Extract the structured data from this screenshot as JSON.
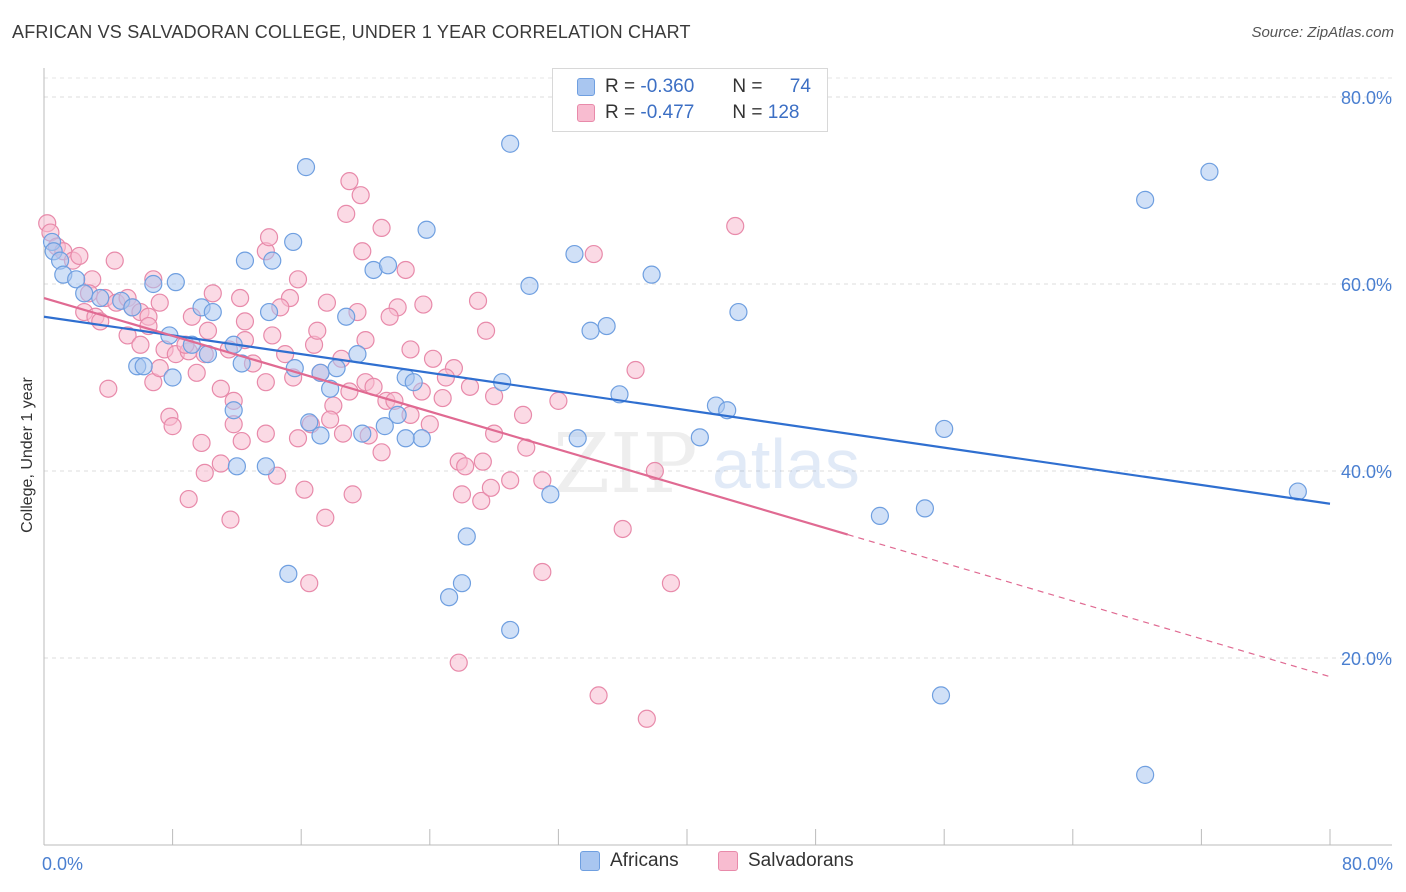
{
  "title": "AFRICAN VS SALVADORAN COLLEGE, UNDER 1 YEAR CORRELATION CHART",
  "source": "Source: ZipAtlas.com",
  "watermark": {
    "zip": "ZIP",
    "atlas": "atlas"
  },
  "legend_top": [
    {
      "r_label": "R =",
      "r_value": "-0.360",
      "n_label": "N =",
      "n_value": "74",
      "color": "#a9c6f0",
      "edge": "#6f9fe0"
    },
    {
      "r_label": "R =",
      "r_value": "-0.477",
      "n_label": "N =",
      "n_value": "128",
      "color": "#f8bcd0",
      "edge": "#e88aaa"
    }
  ],
  "legend_bottom": [
    {
      "label": "Africans",
      "color": "#a9c6f0",
      "edge": "#6f9fe0"
    },
    {
      "label": "Salvadorans",
      "color": "#f8bcd0",
      "edge": "#e88aaa"
    }
  ],
  "chart_data": {
    "type": "scatter",
    "title": "AFRICAN VS SALVADORAN COLLEGE, UNDER 1 YEAR CORRELATION CHART",
    "xlabel": "",
    "ylabel": "College, Under 1 year",
    "xlim": [
      0,
      80
    ],
    "ylim": [
      0,
      82
    ],
    "x_tick_labels": [
      "0.0%",
      "80.0%"
    ],
    "y_ticks": [
      20,
      40,
      60,
      80
    ],
    "y_tick_labels": [
      "20.0%",
      "40.0%",
      "60.0%",
      "80.0%"
    ],
    "grid": true,
    "legend_placement": "top-center",
    "series": [
      {
        "name": "Africans",
        "color": "#6f9fe0",
        "fill": "#a9c6f0",
        "trend": {
          "x": [
            0,
            80
          ],
          "y": [
            56.5,
            36.5
          ],
          "color": "#2f6fd0"
        },
        "points": [
          [
            0.5,
            64.5
          ],
          [
            0.6,
            63.5
          ],
          [
            1.0,
            62.5
          ],
          [
            1.2,
            61.0
          ],
          [
            2.0,
            60.5
          ],
          [
            2.5,
            59.0
          ],
          [
            3.5,
            58.5
          ],
          [
            4.8,
            58.2
          ],
          [
            5.5,
            57.5
          ],
          [
            6.8,
            60.0
          ],
          [
            8.2,
            60.2
          ],
          [
            9.8,
            57.5
          ],
          [
            10.5,
            57.0
          ],
          [
            12.5,
            62.5
          ],
          [
            14.2,
            62.5
          ],
          [
            15.5,
            64.5
          ],
          [
            16.3,
            72.5
          ],
          [
            14.0,
            57.0
          ],
          [
            18.8,
            56.5
          ],
          [
            20.5,
            61.5
          ],
          [
            21.4,
            62.0
          ],
          [
            23.8,
            65.8
          ],
          [
            29.0,
            75.0
          ],
          [
            30.2,
            59.8
          ],
          [
            33.0,
            63.2
          ],
          [
            37.8,
            61.0
          ],
          [
            43.2,
            57.0
          ],
          [
            34.0,
            55.0
          ],
          [
            35.0,
            55.5
          ],
          [
            7.8,
            54.5
          ],
          [
            5.8,
            51.2
          ],
          [
            6.2,
            51.2
          ],
          [
            8.0,
            50.0
          ],
          [
            9.2,
            53.5
          ],
          [
            10.2,
            52.5
          ],
          [
            11.8,
            53.5
          ],
          [
            12.3,
            51.5
          ],
          [
            15.6,
            51.0
          ],
          [
            18.2,
            51.0
          ],
          [
            19.5,
            52.5
          ],
          [
            17.2,
            50.5
          ],
          [
            17.8,
            48.8
          ],
          [
            22.5,
            50.0
          ],
          [
            23.0,
            49.5
          ],
          [
            11.8,
            46.5
          ],
          [
            16.5,
            45.2
          ],
          [
            17.2,
            43.8
          ],
          [
            21.2,
            44.8
          ],
          [
            22.0,
            46.0
          ],
          [
            23.5,
            43.5
          ],
          [
            12.0,
            40.5
          ],
          [
            13.8,
            40.5
          ],
          [
            19.8,
            44.0
          ],
          [
            22.5,
            43.5
          ],
          [
            28.5,
            49.5
          ],
          [
            35.8,
            48.2
          ],
          [
            41.8,
            47.0
          ],
          [
            42.5,
            46.5
          ],
          [
            31.5,
            37.5
          ],
          [
            33.2,
            43.5
          ],
          [
            40.8,
            43.6
          ],
          [
            56.0,
            44.5
          ],
          [
            54.8,
            36.0
          ],
          [
            52.0,
            35.2
          ],
          [
            68.5,
            69.0
          ],
          [
            72.5,
            72.0
          ],
          [
            78.0,
            37.8
          ],
          [
            26.3,
            33.0
          ],
          [
            26.0,
            28.0
          ],
          [
            25.2,
            26.5
          ],
          [
            15.2,
            29.0
          ],
          [
            29.0,
            23.0
          ],
          [
            55.8,
            16.0
          ],
          [
            68.5,
            7.5
          ]
        ]
      },
      {
        "name": "Salvadorans",
        "color": "#e88aaa",
        "fill": "#f8bcd0",
        "trend": {
          "x": [
            0,
            50
          ],
          "y": [
            58.5,
            33.2
          ],
          "x_dash_end": 80,
          "y_dash_end": 18.0,
          "color": "#e06a92"
        },
        "points": [
          [
            0.2,
            66.5
          ],
          [
            0.4,
            65.5
          ],
          [
            0.8,
            64.0
          ],
          [
            1.2,
            63.5
          ],
          [
            1.8,
            62.5
          ],
          [
            2.2,
            63.0
          ],
          [
            3.0,
            60.5
          ],
          [
            4.4,
            62.5
          ],
          [
            2.8,
            59.0
          ],
          [
            3.8,
            58.5
          ],
          [
            4.5,
            58.0
          ],
          [
            5.2,
            58.5
          ],
          [
            6.8,
            60.5
          ],
          [
            7.2,
            58.0
          ],
          [
            5.5,
            57.5
          ],
          [
            2.5,
            57.0
          ],
          [
            3.2,
            56.5
          ],
          [
            3.5,
            56.0
          ],
          [
            6.0,
            57.0
          ],
          [
            6.5,
            56.5
          ],
          [
            9.2,
            56.5
          ],
          [
            10.5,
            59.0
          ],
          [
            12.2,
            58.5
          ],
          [
            13.8,
            63.5
          ],
          [
            14.0,
            65.0
          ],
          [
            15.8,
            60.5
          ],
          [
            19.0,
            71.0
          ],
          [
            19.7,
            69.5
          ],
          [
            18.8,
            67.5
          ],
          [
            21.0,
            66.0
          ],
          [
            19.8,
            63.5
          ],
          [
            22.5,
            61.5
          ],
          [
            15.3,
            58.5
          ],
          [
            14.7,
            57.5
          ],
          [
            17.6,
            58.0
          ],
          [
            22.0,
            57.5
          ],
          [
            23.6,
            57.8
          ],
          [
            25.5,
            51.0
          ],
          [
            27.0,
            58.2
          ],
          [
            34.2,
            63.2
          ],
          [
            43.0,
            66.2
          ],
          [
            5.2,
            54.5
          ],
          [
            6.0,
            53.5
          ],
          [
            7.5,
            53.0
          ],
          [
            8.2,
            52.5
          ],
          [
            9.0,
            52.8
          ],
          [
            10.0,
            52.5
          ],
          [
            11.5,
            53.0
          ],
          [
            12.5,
            54.0
          ],
          [
            14.2,
            54.5
          ],
          [
            10.2,
            55.0
          ],
          [
            13.0,
            51.5
          ],
          [
            16.8,
            53.5
          ],
          [
            18.5,
            52.0
          ],
          [
            20.0,
            49.5
          ],
          [
            21.3,
            47.5
          ],
          [
            23.5,
            48.5
          ],
          [
            24.0,
            45.0
          ],
          [
            6.8,
            49.5
          ],
          [
            7.2,
            51.0
          ],
          [
            9.5,
            50.5
          ],
          [
            11.0,
            48.8
          ],
          [
            11.8,
            47.5
          ],
          [
            13.8,
            49.5
          ],
          [
            15.5,
            50.0
          ],
          [
            17.2,
            50.5
          ],
          [
            18.0,
            47.0
          ],
          [
            19.0,
            48.5
          ],
          [
            20.5,
            49.0
          ],
          [
            21.8,
            47.5
          ],
          [
            22.8,
            46.0
          ],
          [
            4.0,
            48.8
          ],
          [
            7.8,
            45.8
          ],
          [
            8.0,
            44.8
          ],
          [
            9.8,
            43.0
          ],
          [
            11.8,
            45.0
          ],
          [
            12.3,
            43.2
          ],
          [
            13.8,
            44.0
          ],
          [
            15.8,
            43.5
          ],
          [
            16.6,
            45.0
          ],
          [
            17.8,
            45.5
          ],
          [
            18.6,
            44.0
          ],
          [
            20.2,
            43.8
          ],
          [
            21.0,
            42.0
          ],
          [
            25.8,
            41.0
          ],
          [
            26.2,
            40.5
          ],
          [
            27.3,
            41.0
          ],
          [
            10.0,
            39.8
          ],
          [
            11.0,
            40.8
          ],
          [
            14.5,
            39.5
          ],
          [
            16.2,
            38.0
          ],
          [
            19.2,
            37.5
          ],
          [
            26.0,
            37.5
          ],
          [
            27.2,
            36.8
          ],
          [
            27.8,
            38.2
          ],
          [
            29.0,
            39.0
          ],
          [
            31.0,
            39.0
          ],
          [
            38.0,
            40.0
          ],
          [
            9.0,
            37.0
          ],
          [
            11.6,
            34.8
          ],
          [
            17.5,
            35.0
          ],
          [
            36.0,
            33.8
          ],
          [
            31.0,
            29.2
          ],
          [
            39.0,
            28.0
          ],
          [
            16.5,
            28.0
          ],
          [
            25.8,
            19.5
          ],
          [
            34.5,
            16.0
          ],
          [
            37.5,
            13.5
          ],
          [
            28.0,
            48.0
          ],
          [
            29.8,
            46.0
          ],
          [
            32.0,
            47.5
          ],
          [
            36.8,
            50.8
          ],
          [
            27.5,
            55.0
          ],
          [
            24.8,
            47.8
          ],
          [
            22.8,
            53.0
          ],
          [
            25.0,
            50.0
          ],
          [
            20.0,
            54.0
          ],
          [
            8.8,
            53.5
          ],
          [
            12.5,
            56.0
          ],
          [
            6.5,
            55.5
          ],
          [
            15.0,
            52.5
          ],
          [
            17.0,
            55.0
          ],
          [
            19.5,
            57.0
          ],
          [
            21.5,
            56.5
          ],
          [
            24.2,
            52.0
          ],
          [
            26.5,
            49.0
          ],
          [
            28.0,
            44.0
          ],
          [
            30.0,
            42.5
          ]
        ]
      }
    ]
  }
}
